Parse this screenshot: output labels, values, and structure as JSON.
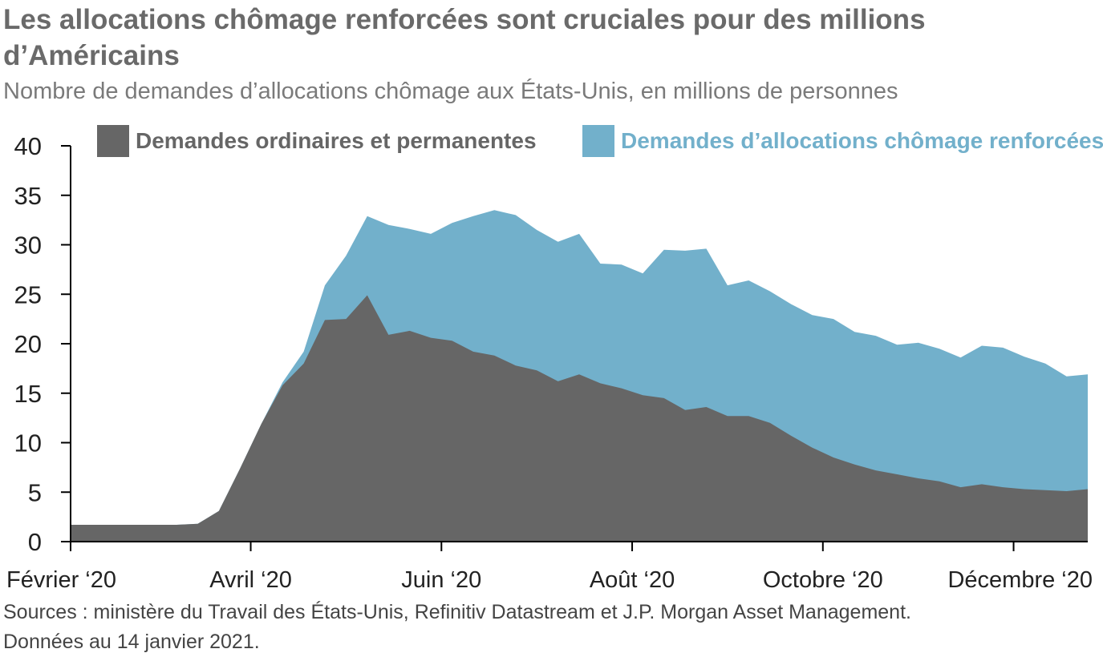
{
  "header": {
    "title": "Les allocations chômage renforcées sont cruciales pour des millions d’Américains",
    "subtitle": "Nombre de demandes d’allocations chômage aux États-Unis, en millions de personnes"
  },
  "footer": {
    "source_line1": "Sources : ministère du Travail des États-Unis, Refinitiv Datastream et J.P. Morgan Asset Management.",
    "source_line2": "Données au 14 janvier 2021."
  },
  "colors": {
    "ordinary": "#666666",
    "enhanced": "#72b0cb",
    "axis": "#000000"
  },
  "chart_data": {
    "type": "area",
    "stacked": true,
    "x_unit": "weeks",
    "x_labels": [
      "Février ‘20",
      "Avril ‘20",
      "Juin ‘20",
      "Août ‘20",
      "Octobre ‘20",
      "Décembre ‘20"
    ],
    "x_label_index": [
      0,
      8.5,
      17.5,
      26.5,
      35.5,
      44.5
    ],
    "y_ticks": [
      0,
      5,
      10,
      15,
      20,
      25,
      30,
      35,
      40
    ],
    "ylim": [
      0,
      40
    ],
    "xlabel": "",
    "ylabel": "",
    "legend_position": "top",
    "grid": false,
    "series": [
      {
        "name": "Demandes ordinaires et permanentes",
        "color_key": "ordinary",
        "values": [
          1.7,
          1.7,
          1.7,
          1.7,
          1.7,
          1.7,
          1.8,
          3.1,
          7.4,
          11.9,
          15.8,
          18.0,
          22.4,
          22.5,
          24.9,
          20.9,
          21.3,
          20.6,
          20.3,
          19.2,
          18.8,
          17.8,
          17.3,
          16.2,
          16.9,
          16.0,
          15.5,
          14.8,
          14.5,
          13.3,
          13.6,
          12.7,
          12.7,
          12.0,
          10.7,
          9.5,
          8.5,
          7.8,
          7.2,
          6.8,
          6.4,
          6.1,
          5.5,
          5.8,
          5.5,
          5.3,
          5.2,
          5.1,
          5.3
        ]
      },
      {
        "name": "Demandes d’allocations chômage renforcées",
        "color_key": "enhanced",
        "totals": [
          1.7,
          1.7,
          1.7,
          1.7,
          1.7,
          1.7,
          1.8,
          3.1,
          7.4,
          11.9,
          16.1,
          19.2,
          25.9,
          28.9,
          32.9,
          32.0,
          31.6,
          31.1,
          32.2,
          32.9,
          33.5,
          33.0,
          31.5,
          30.3,
          31.1,
          28.1,
          28.0,
          27.1,
          29.5,
          29.4,
          29.6,
          25.9,
          26.4,
          25.3,
          24.0,
          22.9,
          22.5,
          21.2,
          20.8,
          19.9,
          20.1,
          19.5,
          18.6,
          19.8,
          19.6,
          18.7,
          18.0,
          16.7,
          16.9
        ]
      }
    ]
  }
}
